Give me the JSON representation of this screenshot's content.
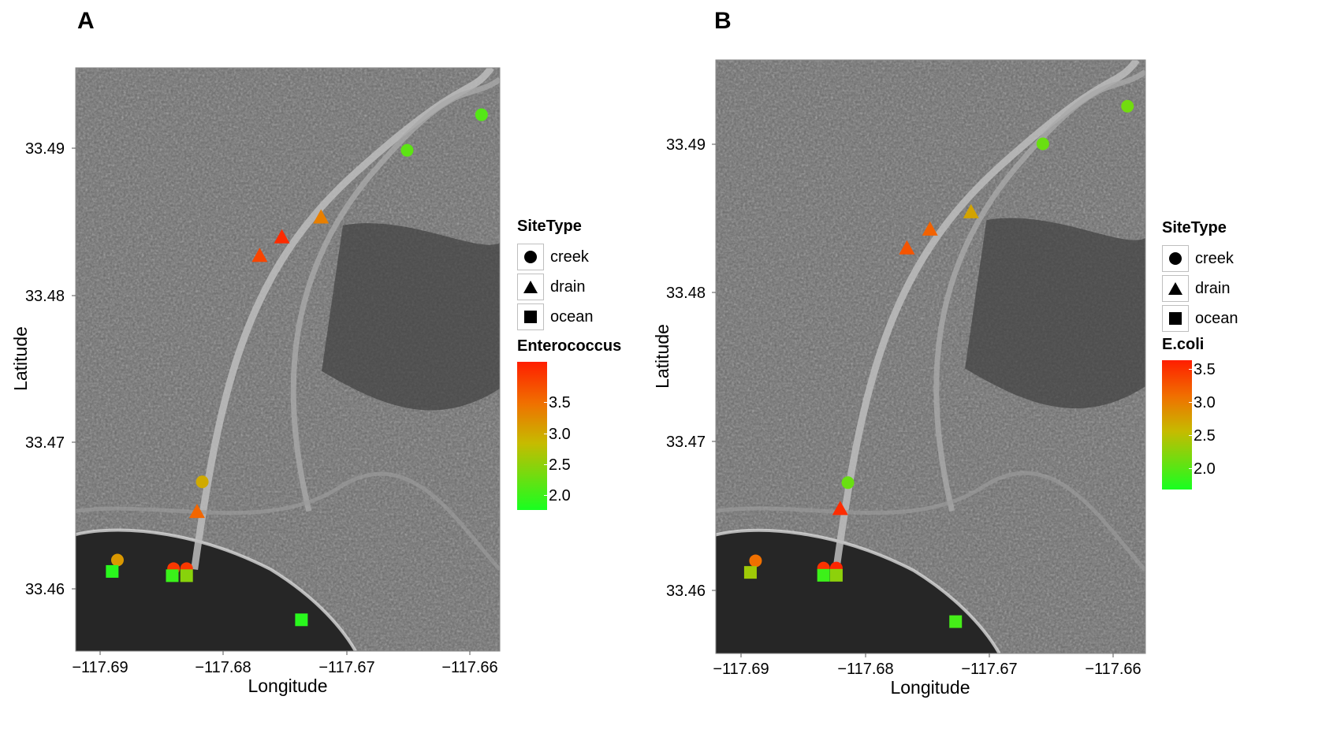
{
  "panels": [
    {
      "id": "A",
      "letter": "A",
      "xlabel": "Longitude",
      "ylabel": "Latitude",
      "x_ticks": [
        "−117.69",
        "−117.68",
        "−117.67",
        "−117.66"
      ],
      "y_ticks": [
        "33.49",
        "33.48",
        "33.47",
        "33.46"
      ],
      "legend_sitetype": {
        "title": "SiteType",
        "items": [
          "creek",
          "drain",
          "ocean"
        ]
      },
      "legend_scale": {
        "title": "Enterococcus",
        "ticks": [
          "3.5",
          "3.0",
          "2.5",
          "2.0"
        ]
      }
    },
    {
      "id": "B",
      "letter": "B",
      "xlabel": "Longitude",
      "ylabel": "Latitude",
      "x_ticks": [
        "−117.69",
        "−117.68",
        "−117.67",
        "−117.66"
      ],
      "y_ticks": [
        "33.49",
        "33.48",
        "33.47",
        "33.46"
      ],
      "legend_sitetype": {
        "title": "SiteType",
        "items": [
          "creek",
          "drain",
          "ocean"
        ]
      },
      "legend_scale": {
        "title": "E.coli",
        "ticks": [
          "3.5",
          "3.0",
          "2.5",
          "2.0"
        ]
      }
    }
  ],
  "colors": {
    "low": "#18ff20",
    "mid": "#c6bb00",
    "orange": "#f07000",
    "high": "#ff1e00"
  },
  "chart_data": [
    {
      "type": "scatter",
      "map": "satellite",
      "xlim": [
        -117.691,
        -117.6585
      ],
      "ylim": [
        33.4555,
        33.4965
      ],
      "color_range": [
        1.7,
        3.95
      ],
      "points": [
        {
          "x": -117.6599,
          "y": 33.4932,
          "shape": "creek",
          "value": 2.05
        },
        {
          "x": -117.6656,
          "y": 33.4907,
          "shape": "creek",
          "value": 2.1
        },
        {
          "x": -117.6722,
          "y": 33.486,
          "shape": "drain",
          "value": 3.2
        },
        {
          "x": -117.6752,
          "y": 33.4846,
          "shape": "drain",
          "value": 3.85
        },
        {
          "x": -117.6769,
          "y": 33.4833,
          "shape": "drain",
          "value": 3.65
        },
        {
          "x": -117.6813,
          "y": 33.4674,
          "shape": "creek",
          "value": 2.85
        },
        {
          "x": -117.6817,
          "y": 33.4653,
          "shape": "drain",
          "value": 3.4
        },
        {
          "x": -117.6878,
          "y": 33.4619,
          "shape": "creek",
          "value": 3.0
        },
        {
          "x": -117.6835,
          "y": 33.4613,
          "shape": "creek",
          "value": 3.75
        },
        {
          "x": -117.6825,
          "y": 33.4613,
          "shape": "creek",
          "value": 3.75
        },
        {
          "x": -117.6882,
          "y": 33.4611,
          "shape": "ocean",
          "value": 1.8
        },
        {
          "x": -117.6836,
          "y": 33.4608,
          "shape": "ocean",
          "value": 1.9
        },
        {
          "x": -117.6825,
          "y": 33.4608,
          "shape": "ocean",
          "value": 2.35
        },
        {
          "x": -117.6737,
          "y": 33.4577,
          "shape": "ocean",
          "value": 1.8
        }
      ]
    },
    {
      "type": "scatter",
      "map": "satellite",
      "xlim": [
        -117.692,
        -117.6585
      ],
      "ylim": [
        33.4555,
        33.4965
      ],
      "color_range": [
        1.55,
        3.7
      ],
      "points": [
        {
          "x": -117.6599,
          "y": 33.4933,
          "shape": "creek",
          "value": 2.05
        },
        {
          "x": -117.6665,
          "y": 33.4907,
          "shape": "creek",
          "value": 2.0
        },
        {
          "x": -117.6721,
          "y": 33.486,
          "shape": "drain",
          "value": 2.7
        },
        {
          "x": -117.6753,
          "y": 33.4848,
          "shape": "drain",
          "value": 3.2
        },
        {
          "x": -117.6771,
          "y": 33.4835,
          "shape": "drain",
          "value": 3.3
        },
        {
          "x": -117.6817,
          "y": 33.4673,
          "shape": "creek",
          "value": 2.0
        },
        {
          "x": -117.6823,
          "y": 33.4655,
          "shape": "drain",
          "value": 3.6
        },
        {
          "x": -117.6889,
          "y": 33.4619,
          "shape": "creek",
          "value": 3.1
        },
        {
          "x": -117.6836,
          "y": 33.4614,
          "shape": "creek",
          "value": 3.55
        },
        {
          "x": -117.6826,
          "y": 33.4614,
          "shape": "creek",
          "value": 3.65
        },
        {
          "x": -117.6893,
          "y": 33.4611,
          "shape": "ocean",
          "value": 2.3
        },
        {
          "x": -117.6836,
          "y": 33.4609,
          "shape": "ocean",
          "value": 1.75
        },
        {
          "x": -117.6826,
          "y": 33.4609,
          "shape": "ocean",
          "value": 2.2
        },
        {
          "x": -117.6733,
          "y": 33.4577,
          "shape": "ocean",
          "value": 1.8
        }
      ]
    }
  ]
}
